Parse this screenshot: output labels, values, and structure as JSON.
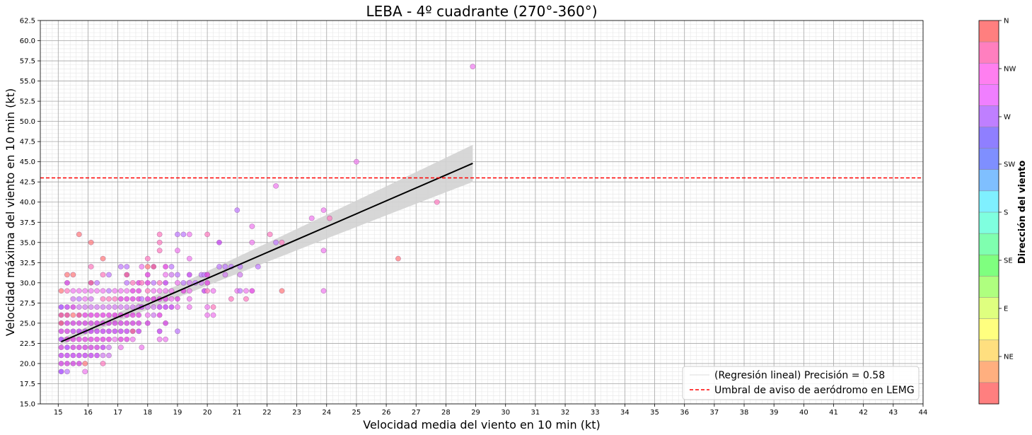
{
  "chart_data": {
    "type": "scatter",
    "title": "LEBA - 4º cuadrante (270°-360°)",
    "xlabel": "Velocidad media del viento en 10 min (kt)",
    "ylabel": "Velocidad máxima del viento en 10 min (kt)",
    "xlim": [
      14.4,
      44
    ],
    "ylim": [
      15.0,
      62.5
    ],
    "xticks": [
      "15",
      "16",
      "17",
      "18",
      "19",
      "20",
      "21",
      "22",
      "23",
      "24",
      "25",
      "26",
      "27",
      "28",
      "29",
      "30",
      "31",
      "32",
      "33",
      "34",
      "35",
      "36",
      "37",
      "38",
      "39",
      "40",
      "41",
      "42",
      "43",
      "44"
    ],
    "yticks": [
      "15.0",
      "17.5",
      "20.0",
      "22.5",
      "25.0",
      "27.5",
      "30.0",
      "32.5",
      "35.0",
      "37.5",
      "40.0",
      "42.5",
      "45.0",
      "47.5",
      "50.0",
      "52.5",
      "55.0",
      "57.5",
      "60.0",
      "62.5"
    ],
    "grid": true,
    "regression": {
      "x": [
        15.1,
        28.9
      ],
      "y": [
        22.7,
        44.8
      ],
      "ci_half_width_start": 0.4,
      "ci_half_width_end": 2.3,
      "color": "#000000",
      "band_color": "#d3d3d3"
    },
    "threshold": {
      "y": 43.0,
      "color": "#ff0000"
    },
    "legend": {
      "position": "bottom-right",
      "entries": [
        {
          "label": "(Regresión lineal) Precisión = 0.58",
          "style": "faint-line"
        },
        {
          "label": "Umbral de aviso de aeródromo en LEMG",
          "style": "dashed-red"
        }
      ]
    },
    "colorbar": {
      "label": "Dirección del viento",
      "ticks": [
        "N",
        "NW",
        "W",
        "SW",
        "S",
        "SE",
        "E",
        "NE"
      ],
      "colors": [
        "#ff7f7f",
        "#ff7fbf",
        "#ff7ff0",
        "#f07fff",
        "#bf7fff",
        "#8f7fff",
        "#7f8fff",
        "#7fbfff",
        "#7ff0ff",
        "#7fffdf",
        "#7fffaf",
        "#7fff7f",
        "#afff7f",
        "#dfff7f",
        "#ffff7f",
        "#ffdf7f",
        "#ffaf7f",
        "#ff7f7f"
      ]
    },
    "points": [
      [
        15.1,
        19,
        "#a040ff"
      ],
      [
        15.1,
        20,
        "#d040e0"
      ],
      [
        15.1,
        21,
        "#c040f0"
      ],
      [
        15.1,
        22,
        "#d040e0"
      ],
      [
        15.1,
        23,
        "#b040ff"
      ],
      [
        15.1,
        24,
        "#d040e0"
      ],
      [
        15.1,
        25,
        "#e04080"
      ],
      [
        15.1,
        26,
        "#e04090"
      ],
      [
        15.1,
        27,
        "#a040ff"
      ],
      [
        15.1,
        29,
        "#ff7f7f"
      ],
      [
        15.3,
        19,
        "#c080ff"
      ],
      [
        15.3,
        20,
        "#d040e0"
      ],
      [
        15.3,
        21,
        "#c040f0"
      ],
      [
        15.3,
        22,
        "#b040ff"
      ],
      [
        15.3,
        23,
        "#e040e0"
      ],
      [
        15.3,
        24,
        "#d040e0"
      ],
      [
        15.3,
        25,
        "#d040e0"
      ],
      [
        15.3,
        26,
        "#e04090"
      ],
      [
        15.3,
        27,
        "#c040f0"
      ],
      [
        15.3,
        29,
        "#ff80c0"
      ],
      [
        15.3,
        30,
        "#d040e0"
      ],
      [
        15.3,
        31,
        "#ff7f7f"
      ],
      [
        15.5,
        20,
        "#d040e0"
      ],
      [
        15.5,
        21,
        "#c040f0"
      ],
      [
        15.5,
        22,
        "#d040e0"
      ],
      [
        15.5,
        23,
        "#e040e0"
      ],
      [
        15.5,
        24,
        "#c040f0"
      ],
      [
        15.5,
        25,
        "#d040e0"
      ],
      [
        15.5,
        26,
        "#ff7f7f"
      ],
      [
        15.5,
        27,
        "#d040e0"
      ],
      [
        15.5,
        28,
        "#d080f0"
      ],
      [
        15.5,
        29,
        "#f080f0"
      ],
      [
        15.5,
        31,
        "#ff7f7f"
      ],
      [
        15.7,
        20,
        "#d040e0"
      ],
      [
        15.7,
        21,
        "#c040f0"
      ],
      [
        15.7,
        22,
        "#d040e0"
      ],
      [
        15.7,
        23,
        "#e040e0"
      ],
      [
        15.7,
        24,
        "#c040f0"
      ],
      [
        15.7,
        25,
        "#d040e0"
      ],
      [
        15.7,
        26,
        "#e04090"
      ],
      [
        15.7,
        27,
        "#d080f0"
      ],
      [
        15.7,
        28,
        "#c080ff"
      ],
      [
        15.7,
        29,
        "#f080f0"
      ],
      [
        15.7,
        36,
        "#ff7f7f"
      ],
      [
        15.9,
        19,
        "#f080f0"
      ],
      [
        15.9,
        20,
        "#ff7f7f"
      ],
      [
        15.9,
        21,
        "#c040f0"
      ],
      [
        15.9,
        22,
        "#d040e0"
      ],
      [
        15.9,
        23,
        "#e040e0"
      ],
      [
        15.9,
        24,
        "#c040f0"
      ],
      [
        15.9,
        25,
        "#d040e0"
      ],
      [
        15.9,
        26,
        "#e040e0"
      ],
      [
        15.9,
        27,
        "#d080f0"
      ],
      [
        15.9,
        28,
        "#f080f0"
      ],
      [
        15.9,
        29,
        "#f080f0"
      ],
      [
        16.1,
        21,
        "#c040f0"
      ],
      [
        16.1,
        22,
        "#d040e0"
      ],
      [
        16.1,
        23,
        "#e040e0"
      ],
      [
        16.1,
        24,
        "#c040f0"
      ],
      [
        16.1,
        25,
        "#d040e0"
      ],
      [
        16.1,
        26,
        "#e040e0"
      ],
      [
        16.1,
        27,
        "#d080f0"
      ],
      [
        16.1,
        28,
        "#d080f0"
      ],
      [
        16.1,
        29,
        "#f080f0"
      ],
      [
        16.1,
        30,
        "#e04090"
      ],
      [
        16.1,
        32,
        "#ff80c0"
      ],
      [
        16.1,
        35,
        "#ff7f7f"
      ],
      [
        16.3,
        21,
        "#c040f0"
      ],
      [
        16.3,
        22,
        "#d040e0"
      ],
      [
        16.3,
        23,
        "#e040e0"
      ],
      [
        16.3,
        24,
        "#c040f0"
      ],
      [
        16.3,
        25,
        "#d040e0"
      ],
      [
        16.3,
        26,
        "#e040e0"
      ],
      [
        16.3,
        27,
        "#d080f0"
      ],
      [
        16.3,
        29,
        "#f080f0"
      ],
      [
        16.3,
        30,
        "#c080ff"
      ],
      [
        16.5,
        20,
        "#ff80c0"
      ],
      [
        16.5,
        21,
        "#d080f0"
      ],
      [
        16.5,
        22,
        "#c040f0"
      ],
      [
        16.5,
        23,
        "#e040e0"
      ],
      [
        16.5,
        24,
        "#c040f0"
      ],
      [
        16.5,
        25,
        "#d040e0"
      ],
      [
        16.5,
        26,
        "#e040e0"
      ],
      [
        16.5,
        27,
        "#d080f0"
      ],
      [
        16.5,
        28,
        "#ff80c0"
      ],
      [
        16.5,
        29,
        "#f080f0"
      ],
      [
        16.5,
        31,
        "#ff80c0"
      ],
      [
        16.5,
        33,
        "#ff7f7f"
      ],
      [
        16.7,
        21,
        "#d080f0"
      ],
      [
        16.7,
        22,
        "#d080f0"
      ],
      [
        16.7,
        23,
        "#e040e0"
      ],
      [
        16.7,
        24,
        "#c040f0"
      ],
      [
        16.7,
        25,
        "#d040e0"
      ],
      [
        16.7,
        26,
        "#e040e0"
      ],
      [
        16.7,
        27,
        "#d080f0"
      ],
      [
        16.7,
        28,
        "#ff80c0"
      ],
      [
        16.7,
        29,
        "#c080ff"
      ],
      [
        16.7,
        31,
        "#c080ff"
      ],
      [
        16.9,
        23,
        "#f080f0"
      ],
      [
        16.9,
        24,
        "#c040f0"
      ],
      [
        16.9,
        25,
        "#d040e0"
      ],
      [
        16.9,
        26,
        "#e040e0"
      ],
      [
        16.9,
        27,
        "#d080f0"
      ],
      [
        16.9,
        28,
        "#ff80c0"
      ],
      [
        16.9,
        29,
        "#f080f0"
      ],
      [
        17.1,
        22,
        "#f080f0"
      ],
      [
        17.1,
        23,
        "#e040e0"
      ],
      [
        17.1,
        24,
        "#c040f0"
      ],
      [
        17.1,
        25,
        "#d040e0"
      ],
      [
        17.1,
        26,
        "#e040e0"
      ],
      [
        17.1,
        27,
        "#d080f0"
      ],
      [
        17.1,
        28,
        "#e040e0"
      ],
      [
        17.1,
        29,
        "#f080f0"
      ],
      [
        17.1,
        32,
        "#c080ff"
      ],
      [
        17.3,
        23,
        "#e040e0"
      ],
      [
        17.3,
        24,
        "#c040f0"
      ],
      [
        17.3,
        25,
        "#d040e0"
      ],
      [
        17.3,
        26,
        "#e040e0"
      ],
      [
        17.3,
        27,
        "#d080f0"
      ],
      [
        17.3,
        28,
        "#e040e0"
      ],
      [
        17.3,
        29,
        "#f080f0"
      ],
      [
        17.3,
        30,
        "#c080ff"
      ],
      [
        17.3,
        31,
        "#e04090"
      ],
      [
        17.3,
        32,
        "#c080ff"
      ],
      [
        17.5,
        23,
        "#f080f0"
      ],
      [
        17.5,
        24,
        "#e04090"
      ],
      [
        17.5,
        25,
        "#d040e0"
      ],
      [
        17.5,
        26,
        "#e040e0"
      ],
      [
        17.5,
        27,
        "#d080f0"
      ],
      [
        17.5,
        28,
        "#e040e0"
      ],
      [
        17.5,
        29,
        "#e040e0"
      ],
      [
        17.5,
        30,
        "#ff80c0"
      ],
      [
        17.7,
        24,
        "#c040f0"
      ],
      [
        17.7,
        25,
        "#d040e0"
      ],
      [
        17.7,
        26,
        "#e040e0"
      ],
      [
        17.7,
        27,
        "#d080f0"
      ],
      [
        17.7,
        28,
        "#e040e0"
      ],
      [
        17.7,
        29,
        "#e040e0"
      ],
      [
        17.7,
        30,
        "#e040e0"
      ],
      [
        17.8,
        22,
        "#f080f0"
      ],
      [
        17.8,
        27,
        "#c040f0"
      ],
      [
        17.8,
        28,
        "#c080ff"
      ],
      [
        17.8,
        30,
        "#ff80c0"
      ],
      [
        17.8,
        32,
        "#f080f0"
      ],
      [
        18.0,
        25,
        "#d040e0"
      ],
      [
        18.0,
        26,
        "#f080f0"
      ],
      [
        18.0,
        27,
        "#d080f0"
      ],
      [
        18.0,
        28,
        "#e040e0"
      ],
      [
        18.0,
        29,
        "#ff80c0"
      ],
      [
        18.0,
        30,
        "#e040e0"
      ],
      [
        18.0,
        31,
        "#e040e0"
      ],
      [
        18.0,
        32,
        "#ff7f7f"
      ],
      [
        18.0,
        33,
        "#ff80c0"
      ],
      [
        18.2,
        26,
        "#d080f0"
      ],
      [
        18.2,
        27,
        "#d080f0"
      ],
      [
        18.2,
        28,
        "#e040e0"
      ],
      [
        18.2,
        29,
        "#f080f0"
      ],
      [
        18.2,
        30,
        "#c080ff"
      ],
      [
        18.2,
        32,
        "#e04090"
      ],
      [
        18.4,
        23,
        "#f080f0"
      ],
      [
        18.4,
        24,
        "#c040f0"
      ],
      [
        18.4,
        26,
        "#e040e0"
      ],
      [
        18.4,
        27,
        "#c040f0"
      ],
      [
        18.4,
        28,
        "#e040e0"
      ],
      [
        18.4,
        29,
        "#f080f0"
      ],
      [
        18.4,
        30,
        "#ff80c0"
      ],
      [
        18.4,
        34,
        "#ff80c0"
      ],
      [
        18.4,
        35,
        "#ff80c0"
      ],
      [
        18.4,
        36,
        "#ff80c0"
      ],
      [
        18.6,
        23,
        "#f080f0"
      ],
      [
        18.6,
        25,
        "#d040e0"
      ],
      [
        18.6,
        27,
        "#c040f0"
      ],
      [
        18.6,
        28,
        "#e040e0"
      ],
      [
        18.6,
        29,
        "#f080f0"
      ],
      [
        18.6,
        30,
        "#c040f0"
      ],
      [
        18.6,
        31,
        "#f080f0"
      ],
      [
        18.6,
        32,
        "#e040e0"
      ],
      [
        18.8,
        27,
        "#c040f0"
      ],
      [
        18.8,
        28,
        "#f080f0"
      ],
      [
        18.8,
        29,
        "#f080f0"
      ],
      [
        18.8,
        31,
        "#d080f0"
      ],
      [
        18.8,
        32,
        "#c080ff"
      ],
      [
        19.0,
        24,
        "#c080ff"
      ],
      [
        19.0,
        27,
        "#f080f0"
      ],
      [
        19.0,
        28,
        "#e040e0"
      ],
      [
        19.0,
        30,
        "#f080f0"
      ],
      [
        19.0,
        31,
        "#c080ff"
      ],
      [
        19.0,
        34,
        "#f080f0"
      ],
      [
        19.0,
        36,
        "#c080ff"
      ],
      [
        19.2,
        29,
        "#e040e0"
      ],
      [
        19.2,
        30,
        "#c080ff"
      ],
      [
        19.2,
        36,
        "#c080ff"
      ],
      [
        19.4,
        27,
        "#f080f0"
      ],
      [
        19.4,
        28,
        "#f080f0"
      ],
      [
        19.4,
        29,
        "#f080f0"
      ],
      [
        19.4,
        30,
        "#d080f0"
      ],
      [
        19.4,
        31,
        "#c040f0"
      ],
      [
        19.4,
        33,
        "#f080f0"
      ],
      [
        19.4,
        36,
        "#f080f0"
      ],
      [
        19.6,
        30,
        "#c080ff"
      ],
      [
        19.8,
        30,
        "#d080f0"
      ],
      [
        19.8,
        31,
        "#c080ff"
      ],
      [
        19.9,
        29,
        "#c040f0"
      ],
      [
        19.9,
        31,
        "#c080ff"
      ],
      [
        20.0,
        26,
        "#f080f0"
      ],
      [
        20.0,
        27,
        "#f080f0"
      ],
      [
        20.0,
        29,
        "#ff80c0"
      ],
      [
        20.0,
        30,
        "#e040e0"
      ],
      [
        20.0,
        31,
        "#e040e0"
      ],
      [
        20.0,
        36,
        "#ff80c0"
      ],
      [
        20.2,
        26,
        "#f080f0"
      ],
      [
        20.2,
        27,
        "#ff80c0"
      ],
      [
        20.2,
        29,
        "#f080f0"
      ],
      [
        20.4,
        32,
        "#c080ff"
      ],
      [
        20.4,
        35,
        "#c040f0"
      ],
      [
        20.6,
        31,
        "#d080f0"
      ],
      [
        20.6,
        32,
        "#c080ff"
      ],
      [
        20.8,
        28,
        "#ff80c0"
      ],
      [
        20.8,
        32,
        "#c080ff"
      ],
      [
        21.0,
        29,
        "#f080f0"
      ],
      [
        21.0,
        39,
        "#c080ff"
      ],
      [
        21.1,
        29,
        "#c080ff"
      ],
      [
        21.1,
        31,
        "#d080f0"
      ],
      [
        21.1,
        32,
        "#c080ff"
      ],
      [
        21.3,
        28,
        "#ff80c0"
      ],
      [
        21.3,
        29,
        "#f080f0"
      ],
      [
        21.5,
        29,
        "#e040e0"
      ],
      [
        21.5,
        35,
        "#f080f0"
      ],
      [
        21.5,
        37,
        "#f080f0"
      ],
      [
        21.7,
        32,
        "#c080ff"
      ],
      [
        22.1,
        36,
        "#ff80c0"
      ],
      [
        22.3,
        35,
        "#c080ff"
      ],
      [
        22.3,
        42,
        "#f080f0"
      ],
      [
        22.5,
        29,
        "#ff7f7f"
      ],
      [
        22.5,
        35,
        "#ff80c0"
      ],
      [
        23.5,
        38,
        "#f080f0"
      ],
      [
        23.9,
        29,
        "#f080f0"
      ],
      [
        23.9,
        34,
        "#f080f0"
      ],
      [
        23.9,
        39,
        "#f080f0"
      ],
      [
        24.1,
        38,
        "#ff80c0"
      ],
      [
        25.0,
        45,
        "#f080f0"
      ],
      [
        26.4,
        33,
        "#ff7f7f"
      ],
      [
        27.7,
        40,
        "#ff80c0"
      ],
      [
        28.9,
        56.8,
        "#f080f0"
      ]
    ]
  }
}
